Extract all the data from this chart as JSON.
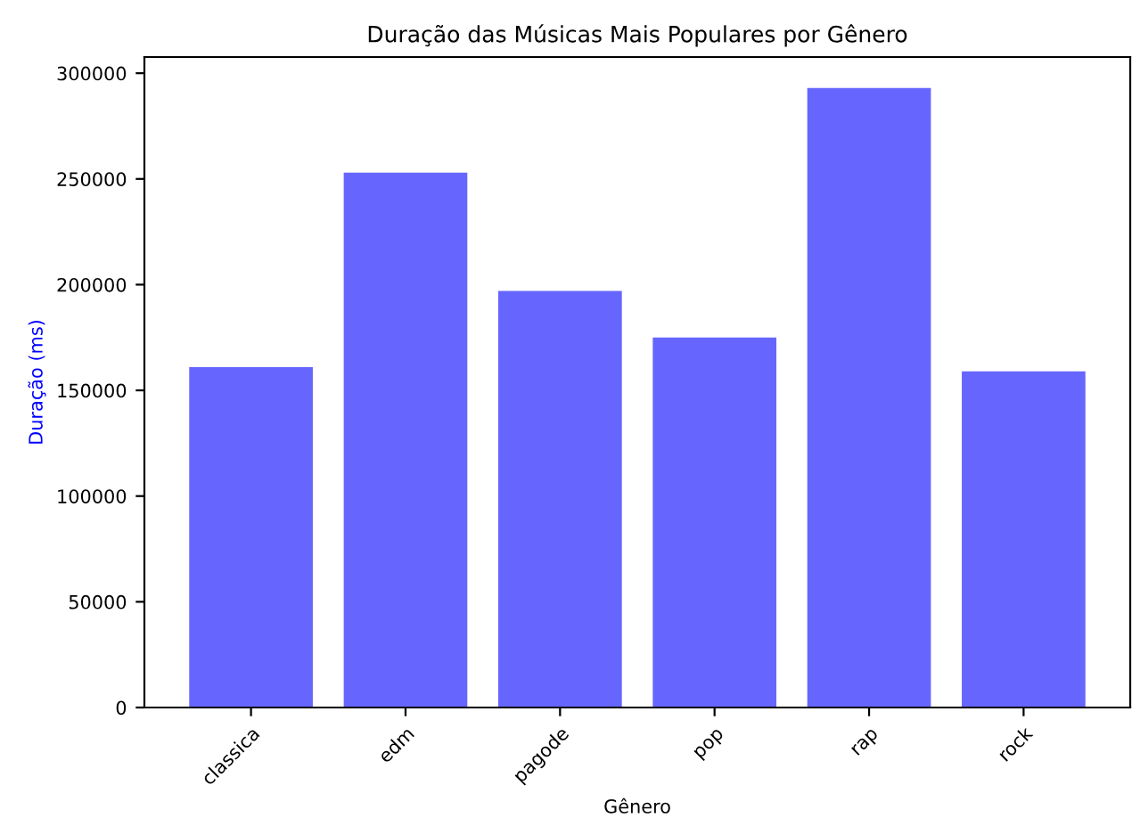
{
  "chart_data": {
    "type": "bar",
    "title": "Duração das Músicas Mais Populares por Gênero",
    "xlabel": "Gênero",
    "ylabel": "Duração (ms)",
    "categories": [
      "classica",
      "edm",
      "pagode",
      "pop",
      "rap",
      "rock"
    ],
    "values": [
      161000,
      253000,
      197000,
      175000,
      293000,
      159000
    ],
    "color": "#6666ff",
    "ylim": [
      0,
      307650
    ],
    "yticks": [
      0,
      50000,
      100000,
      150000,
      200000,
      250000,
      300000
    ],
    "grid": false,
    "legend": false
  }
}
